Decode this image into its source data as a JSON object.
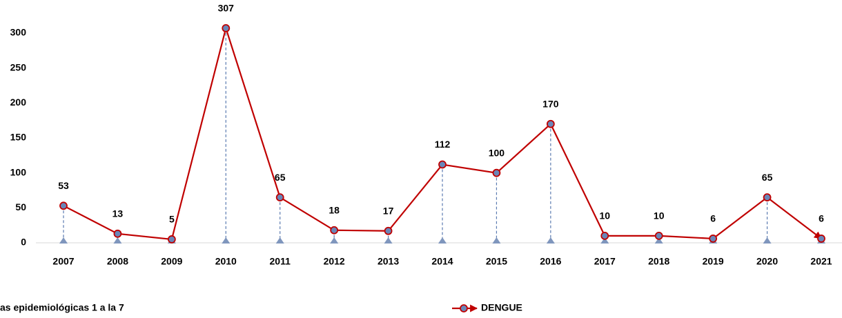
{
  "chart_data": {
    "type": "line",
    "categories": [
      "2007",
      "2008",
      "2009",
      "2010",
      "2011",
      "2012",
      "2013",
      "2014",
      "2015",
      "2016",
      "2017",
      "2018",
      "2019",
      "2020",
      "2021"
    ],
    "series": [
      {
        "name": "DENGUE",
        "color": "#c00000",
        "marker_color": "#6a86b8",
        "values": [
          53,
          13,
          5,
          307,
          65,
          18,
          17,
          112,
          100,
          170,
          10,
          10,
          6,
          65,
          6
        ]
      }
    ],
    "ylim": [
      0,
      350
    ],
    "yticks": [
      0,
      50,
      100,
      150,
      200,
      250,
      300
    ],
    "legend": "bottom",
    "footnote": "as epidemiológicas 1 a la 7"
  }
}
